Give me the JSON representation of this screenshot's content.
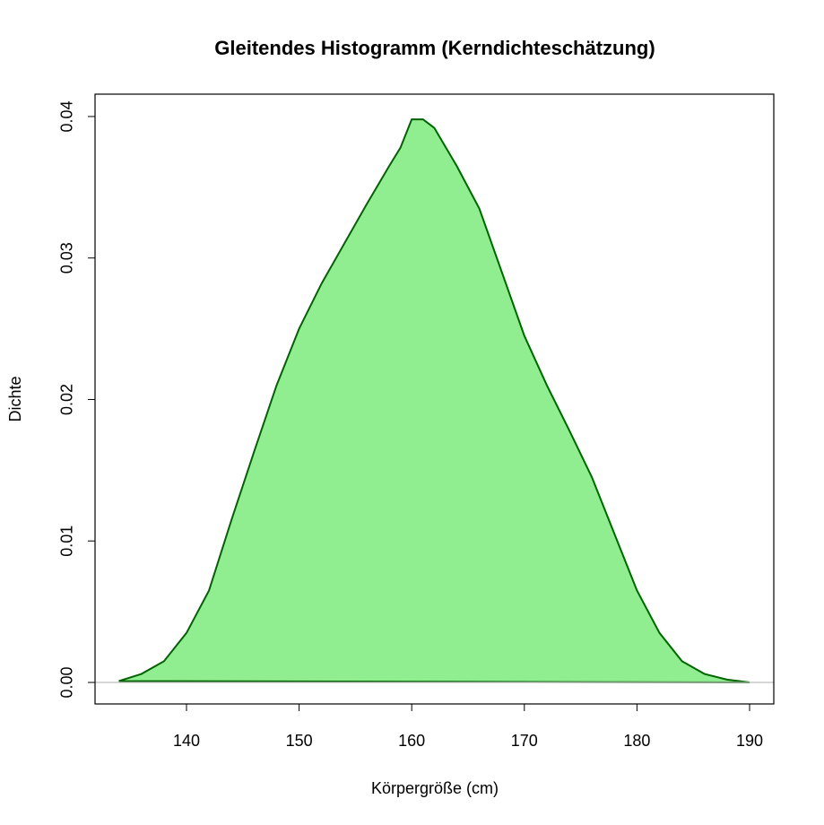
{
  "chart_data": {
    "type": "area",
    "title": "Gleitendes Histogramm (Kerndichteschätzung)",
    "x_label": "Körpergröße (cm)",
    "y_label": "Dichte",
    "x": [
      134,
      136,
      138,
      140,
      142,
      144,
      146,
      148,
      150,
      152,
      154,
      156,
      158,
      159,
      160,
      161,
      162,
      164,
      166,
      168,
      170,
      172,
      174,
      176,
      178,
      180,
      182,
      184,
      186,
      188,
      190
    ],
    "series": [
      {
        "fill": "#90ee90",
        "color": "#006400",
        "values": [
          0.0001,
          0.0006,
          0.0015,
          0.0035,
          0.0065,
          0.0115,
          0.0163,
          0.021,
          0.025,
          0.0282,
          0.031,
          0.0338,
          0.0365,
          0.0378,
          0.0398,
          0.0398,
          0.0392,
          0.0365,
          0.0335,
          0.029,
          0.0245,
          0.021,
          0.0178,
          0.0145,
          0.0105,
          0.0065,
          0.0035,
          0.0015,
          0.0006,
          0.0002,
          0.0
        ]
      }
    ],
    "reference_line": {
      "value": 0,
      "color": "#bebebe"
    },
    "xlim": [
      131.88,
      192.15
    ],
    "ylim": [
      -0.00152,
      0.04158
    ],
    "xticks": [
      140,
      150,
      160,
      170,
      180,
      190
    ],
    "yticks": [
      {
        "value": 0,
        "label": "0.00"
      },
      0.01,
      0.02,
      0.03,
      0.04
    ]
  }
}
